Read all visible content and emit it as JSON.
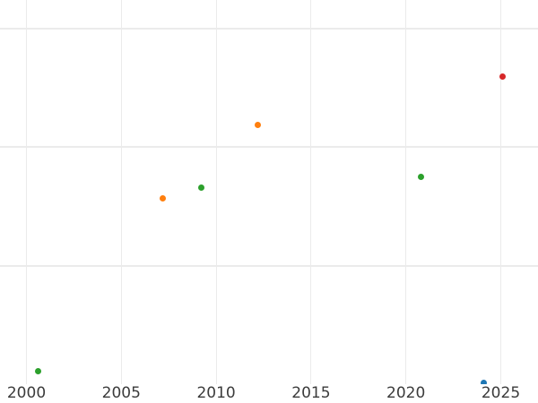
{
  "chart_data": {
    "type": "scatter",
    "title": "",
    "xlabel": "",
    "ylabel": "",
    "x_tick_labels": [
      "2000",
      "2005",
      "2010",
      "2015",
      "2020",
      "2025"
    ],
    "x_ticks": [
      2000,
      2005,
      2010,
      2015,
      2020,
      2025
    ],
    "x_range_visible": [
      1998.6,
      2026.96
    ],
    "y_tick_labels_visible": false,
    "y_gridline_units_visible": [
      1,
      2,
      3
    ],
    "grid": true,
    "legend": "none",
    "y_unit_note": "y-axis tick labels are cropped out of view; y values below are measured in gridline-spacing units above the visible plot bottom edge",
    "points": [
      {
        "x": 2000.6,
        "y": 0.11,
        "color": "green"
      },
      {
        "x": 2007.2,
        "y": 1.57,
        "color": "orange"
      },
      {
        "x": 2009.2,
        "y": 1.66,
        "color": "green"
      },
      {
        "x": 2012.2,
        "y": 2.19,
        "color": "orange"
      },
      {
        "x": 2020.8,
        "y": 1.75,
        "color": "green"
      },
      {
        "x": 2024.1,
        "y": 0.01,
        "color": "blue"
      },
      {
        "x": 2025.1,
        "y": 2.6,
        "color": "red"
      }
    ]
  },
  "colors": {
    "blue": "#1f77b4",
    "orange": "#ff7f0e",
    "green": "#2ca02c",
    "red": "#d62728",
    "gridline": "#ebebeb",
    "tick_text": "#3b3b3b",
    "background": "#ffffff"
  }
}
